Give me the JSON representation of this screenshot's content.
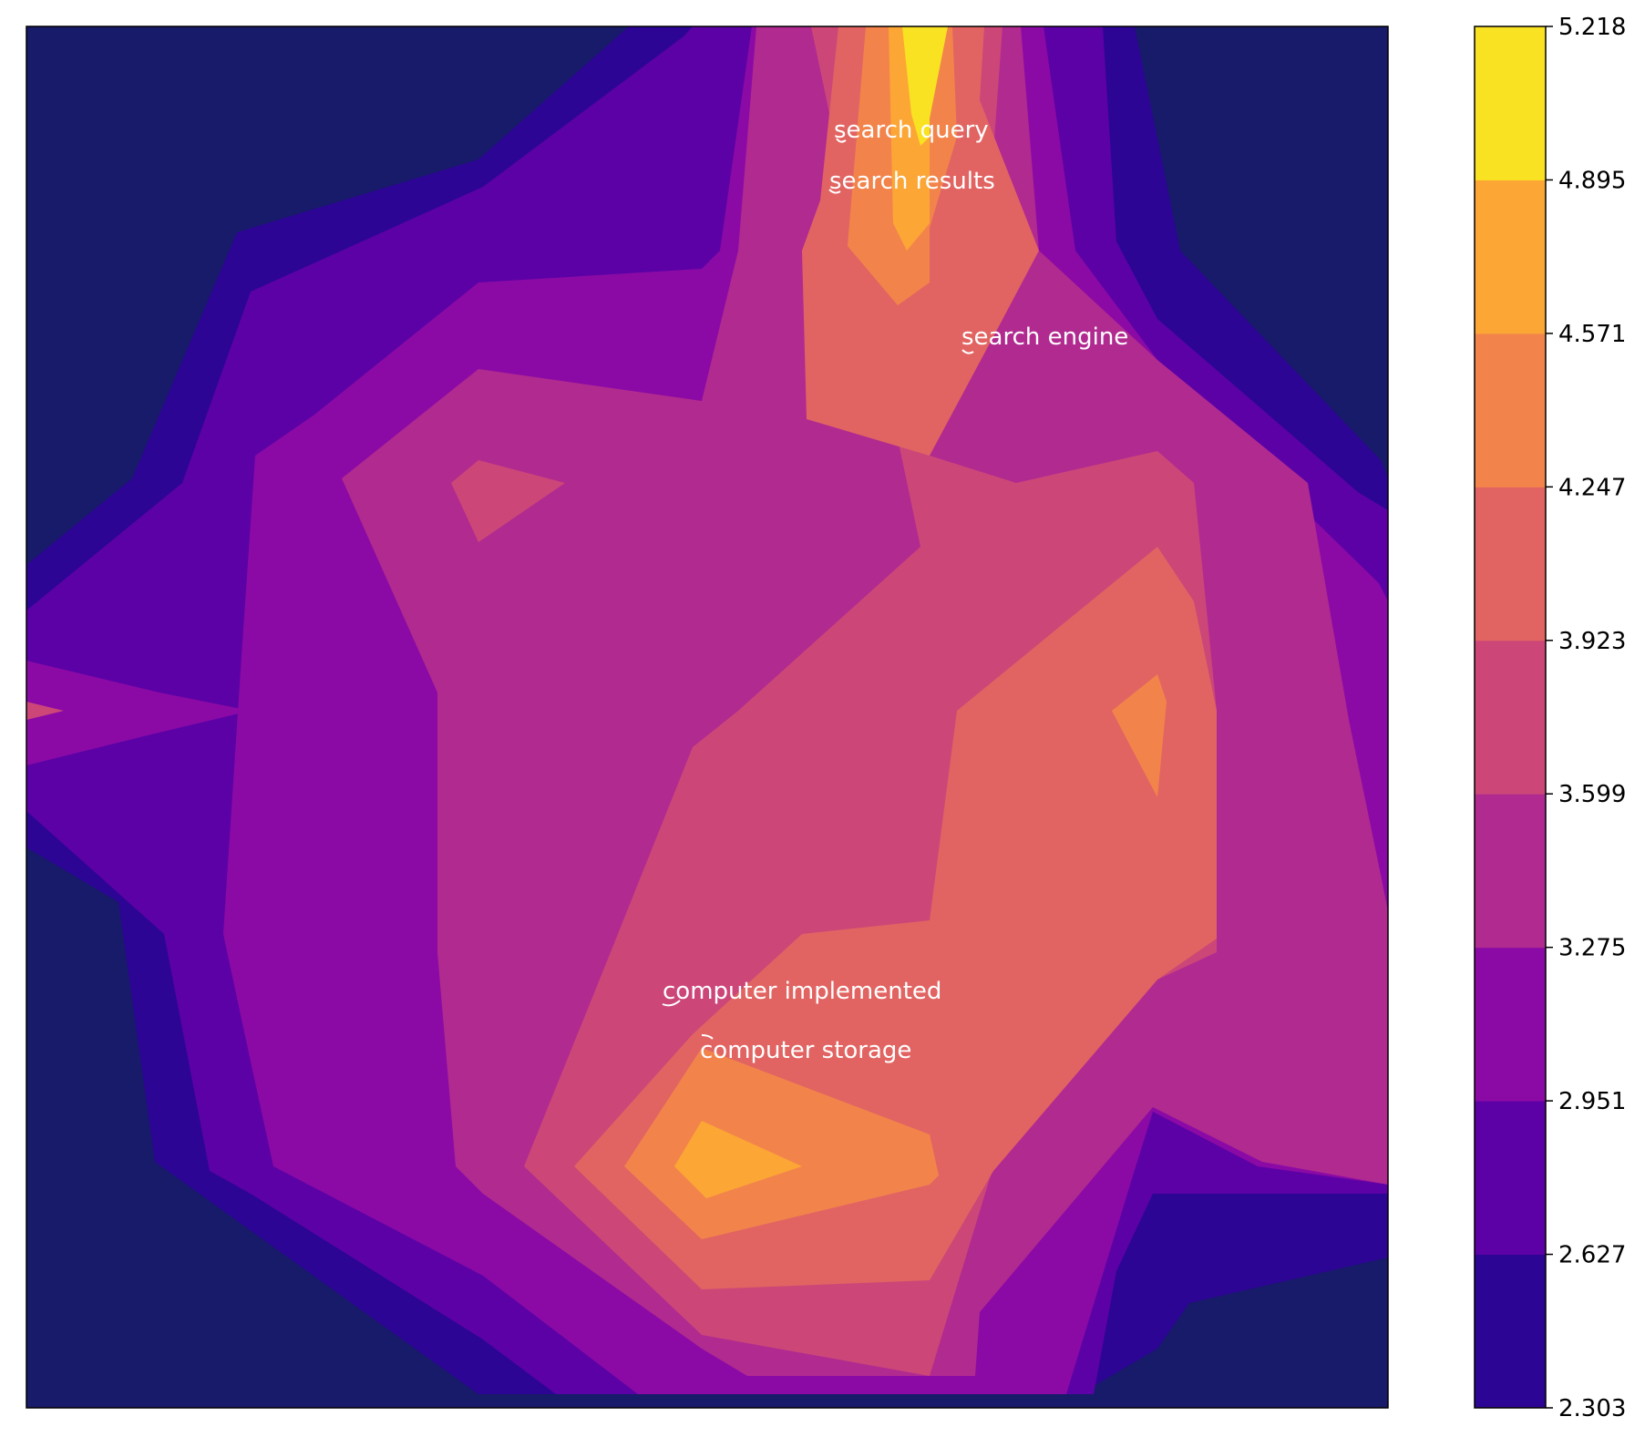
{
  "chart_data": {
    "type": "contour",
    "colorbar": {
      "levels": [
        "2.303",
        "2.627",
        "2.951",
        "3.275",
        "3.599",
        "3.923",
        "4.247",
        "4.571",
        "4.895",
        "5.218"
      ],
      "colors": [
        "#2c0594",
        "#5c01a6",
        "#8b0aa5",
        "#b12a90",
        "#cc4778",
        "#e16462",
        "#f2844b",
        "#fca636",
        "#f9e221"
      ],
      "background_color": "#181a6a"
    },
    "annotations": [
      {
        "text": "search query"
      },
      {
        "text": "search results"
      },
      {
        "text": "search engine"
      },
      {
        "text": "computer implemented"
      },
      {
        "text": "computer storage"
      }
    ],
    "grid": false,
    "colormap": "plasma"
  }
}
